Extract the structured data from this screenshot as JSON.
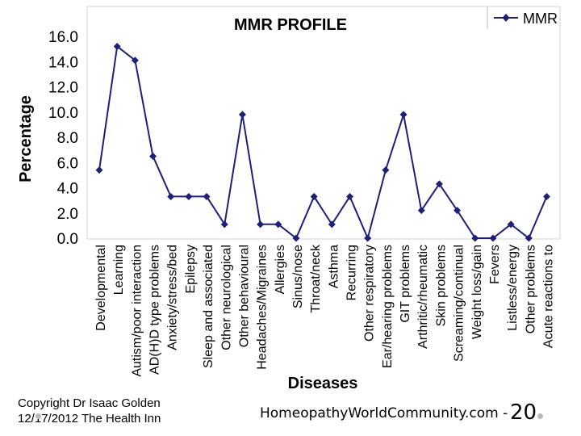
{
  "chart_data": {
    "type": "line",
    "title": "MMR PROFILE",
    "xlabel": "Diseases",
    "ylabel": "Percentage",
    "ylim": [
      0,
      16
    ],
    "yticks": [
      "0.0",
      "2.0",
      "4.0",
      "6.0",
      "8.0",
      "10.0",
      "12.0",
      "14.0",
      "16.0"
    ],
    "grid": false,
    "legend_position": "top-right",
    "categories": [
      "Developmental",
      "Learning",
      "Autism/poor interaction",
      "AD(H)D type problems",
      "Anxiety/stress/bed",
      "Epilepsy",
      "Sleep and associated",
      "Other neurological",
      "Other behavioural",
      "Headaches/Migraines",
      "Allergies",
      "Sinus/nose",
      "Throat/neck",
      "Asthma",
      "Recurring",
      "Other respiratory",
      "Ear/hearing problems",
      "GIT problems",
      "Arthritic/rheumatic",
      "Skin problems",
      "Screaming/continual",
      "Weight loss/gain",
      "Fevers",
      "Listless/energy",
      "Other problems",
      "Acute reactions to"
    ],
    "series": [
      {
        "name": "MMR",
        "color": "#1f1f7a",
        "values": [
          5.4,
          15.2,
          14.1,
          6.5,
          3.3,
          3.3,
          3.3,
          1.1,
          9.8,
          1.1,
          1.1,
          0.0,
          3.3,
          1.1,
          3.3,
          0.0,
          5.4,
          9.8,
          2.2,
          4.3,
          2.2,
          0.0,
          0.0,
          1.1,
          0.0,
          3.3
        ]
      }
    ]
  },
  "footer": {
    "copyright_line1": "Copyright Dr Isaac Golden",
    "copyright_line2": "12/17/2012 The Health Inn",
    "site": "HomeopathyWorldCommunity.com -",
    "page_number": "20"
  }
}
